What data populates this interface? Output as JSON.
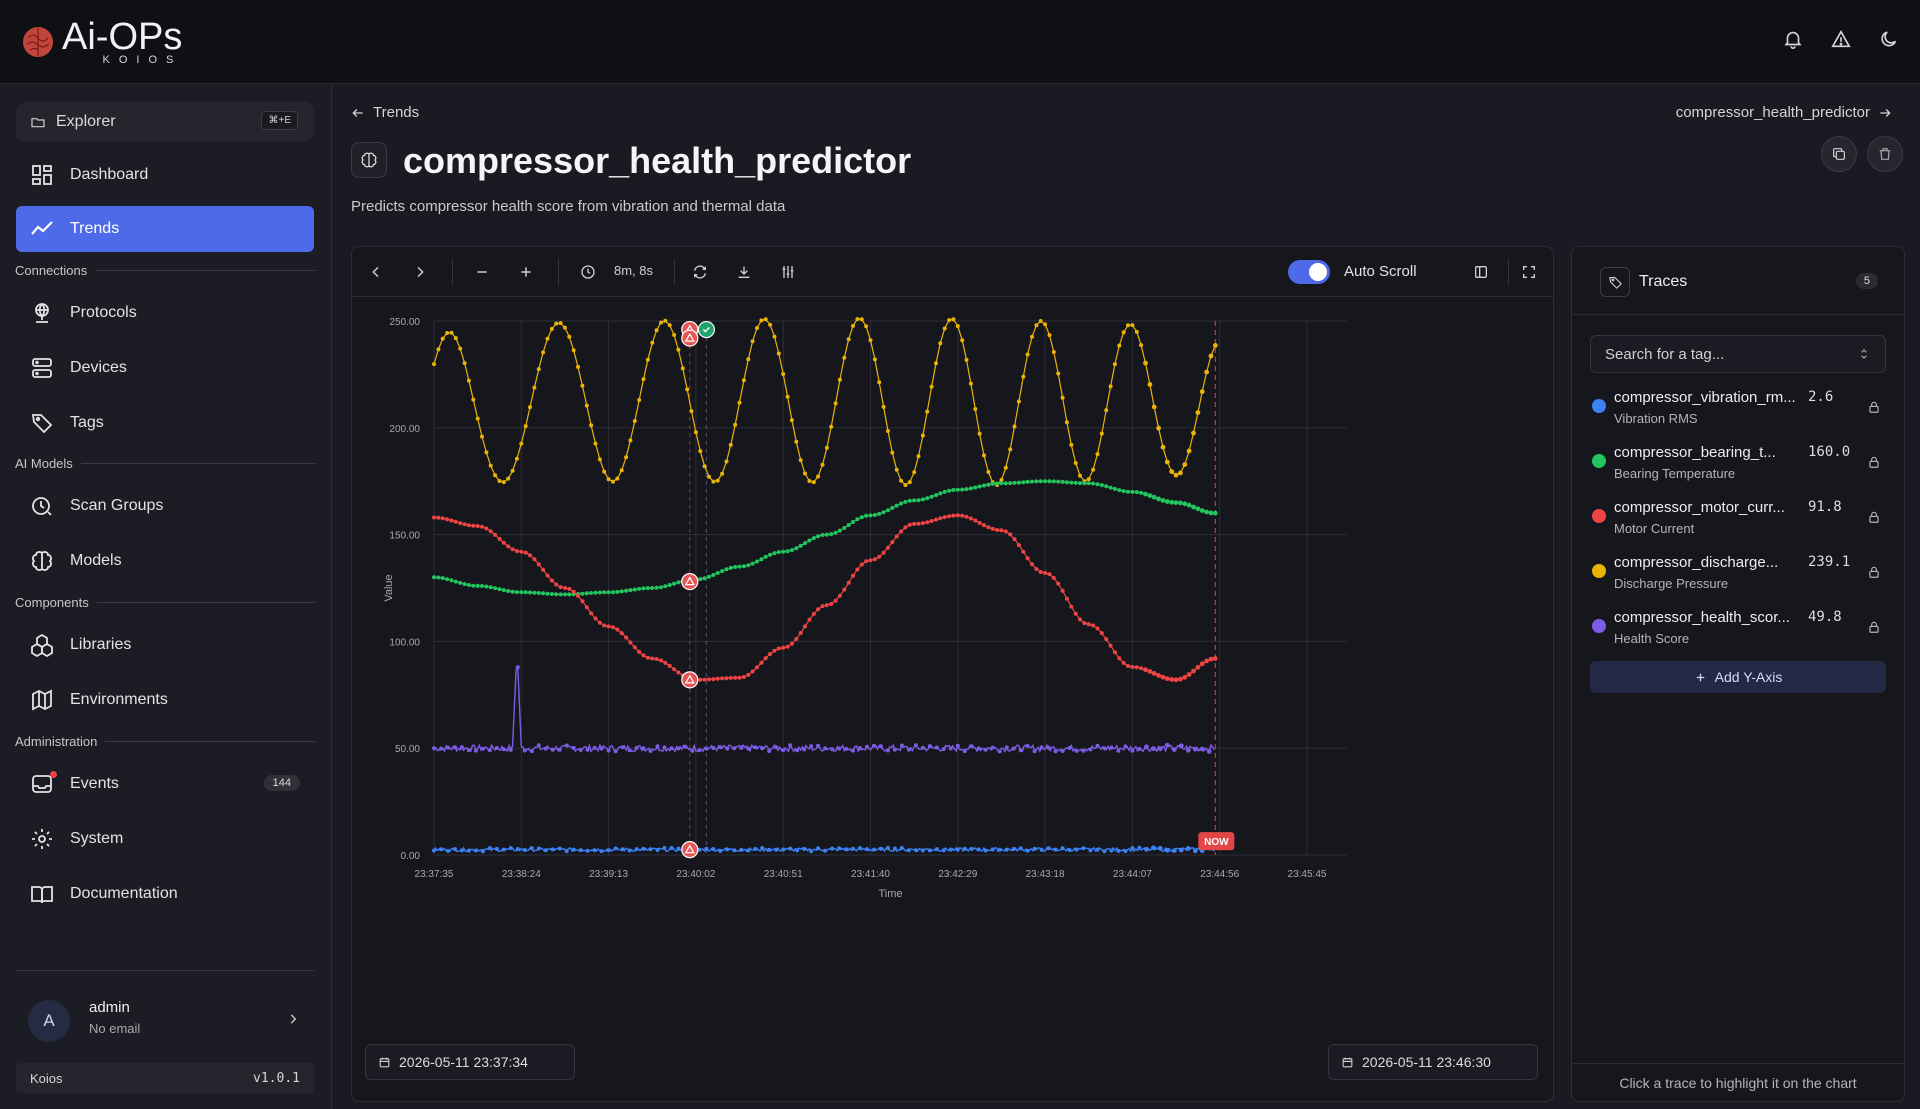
{
  "app": {
    "logo_main": "Ai-OPs",
    "logo_sub": "KOIOS"
  },
  "sidebar": {
    "explorer_label": "Explorer",
    "explorer_shortcut": "⌘+E",
    "items": [
      {
        "label": "Dashboard"
      },
      {
        "label": "Trends"
      },
      {
        "label": "Protocols"
      },
      {
        "label": "Devices"
      },
      {
        "label": "Tags"
      },
      {
        "label": "Scan Groups"
      },
      {
        "label": "Models"
      },
      {
        "label": "Libraries"
      },
      {
        "label": "Environments"
      },
      {
        "label": "Events",
        "badge": "144"
      },
      {
        "label": "System"
      },
      {
        "label": "Documentation"
      }
    ],
    "sections": [
      "Connections",
      "AI Models",
      "Components",
      "Administration"
    ],
    "user": {
      "initial": "A",
      "name": "admin",
      "email": "No email"
    },
    "org": "Koios",
    "version": "v1.0.1"
  },
  "page": {
    "breadcrumb": "Trends",
    "breadcrumb_right": "compressor_health_predictor",
    "title": "compressor_health_predictor",
    "description": "Predicts compressor health score from vibration and thermal data"
  },
  "toolbar": {
    "time_range": "8m, 8s",
    "auto_scroll_label": "Auto Scroll",
    "auto_scroll_on": true
  },
  "dates": {
    "start": "2026-05-11 23:37:34",
    "end": "2026-05-11 23:46:30"
  },
  "traces": {
    "title": "Traces",
    "count": "5",
    "search_placeholder": "Search for a tag...",
    "items": [
      {
        "name": "compressor_vibration_rm...",
        "label": "Vibration RMS",
        "value": "2.6",
        "color": "#3b82f6"
      },
      {
        "name": "compressor_bearing_t...",
        "label": "Bearing Temperature",
        "value": "160.0",
        "color": "#22c55e"
      },
      {
        "name": "compressor_motor_curr...",
        "label": "Motor Current",
        "value": "91.8",
        "color": "#ef4444"
      },
      {
        "name": "compressor_discharge...",
        "label": "Discharge Pressure",
        "value": "239.1",
        "color": "#eab308"
      },
      {
        "name": "compressor_health_scor...",
        "label": "Health Score",
        "value": "49.8",
        "color": "#7c5ce6"
      }
    ],
    "add_label": "Add Y-Axis",
    "footer": "Click a trace to highlight it on the chart"
  },
  "chart_data": {
    "type": "line",
    "xlabel": "Time",
    "ylabel": "Value",
    "ylim": [
      0,
      250
    ],
    "yticks": [
      "0.00",
      "50.00",
      "100.00",
      "150.00",
      "200.00",
      "250.00"
    ],
    "xticks": [
      "23:37:35",
      "23:38:24",
      "23:39:13",
      "23:40:02",
      "23:40:51",
      "23:41:40",
      "23:42:29",
      "23:43:18",
      "23:44:07",
      "23:44:56",
      "23:45:45"
    ],
    "now_label": "NOW",
    "grid": true,
    "series": [
      {
        "color": "#eab308",
        "x": [
          0,
          0.05,
          0.1,
          0.15,
          0.2,
          0.25,
          0.3,
          0.35,
          0.4,
          0.45,
          0.5,
          0.55,
          0.6,
          0.65,
          0.7,
          0.75,
          0.8,
          0.85,
          0.9,
          0.95,
          1.0,
          1.05,
          1.1,
          1.15,
          1.2,
          1.25,
          1.3,
          1.35,
          1.4,
          1.45,
          1.5,
          1.55,
          1.6,
          1.65,
          1.7,
          1.75,
          1.8,
          1.85,
          1.9,
          1.95,
          2.0,
          2.05,
          2.1,
          2.15,
          2.2,
          2.25,
          2.3,
          2.35,
          2.4,
          2.45,
          2.5,
          2.55,
          2.6,
          2.65,
          2.7,
          2.75,
          2.8,
          2.85,
          2.9,
          2.95,
          3.0,
          3.05,
          3.1,
          3.15,
          3.2,
          3.25,
          3.3,
          3.35,
          3.4,
          3.45,
          3.5,
          3.55,
          3.6,
          3.65,
          3.7,
          3.75,
          3.8,
          3.85,
          3.9,
          3.95,
          4.0,
          4.05,
          4.1,
          4.15,
          4.2,
          4.25,
          4.3,
          4.35,
          4.4,
          4.45,
          4.5,
          4.55,
          4.6,
          4.65,
          4.7,
          4.75,
          4.8,
          4.85,
          4.9,
          4.95,
          5.0,
          5.05,
          5.1,
          5.15,
          5.2,
          5.25,
          5.3,
          5.35,
          5.4,
          5.45,
          5.5,
          5.55,
          5.6,
          5.65,
          5.7,
          5.75,
          5.8,
          5.85,
          5.9,
          5.95,
          6.0,
          6.05,
          6.1,
          6.15,
          6.2,
          6.25,
          6.3,
          6.35,
          6.4,
          6.45,
          6.5,
          6.55,
          6.6,
          6.65,
          6.7,
          6.75,
          6.8,
          6.85,
          6.9,
          6.95,
          7.0,
          7.05,
          7.1,
          7.15,
          7.2,
          7.25,
          7.3,
          7.35,
          7.4,
          7.45,
          7.5,
          7.55,
          7.6,
          7.65,
          7.7,
          7.75,
          7.8,
          7.85,
          7.9,
          7.95,
          8.0,
          8.05,
          8.1,
          8.15,
          8.2,
          8.25,
          8.3,
          8.35,
          8.4,
          8.45,
          8.5,
          8.55,
          8.6,
          8.65,
          8.7,
          8.75,
          8.8,
          8.85,
          8.9,
          8.95
        ],
        "y": [
          229.8,
          236.7,
          241.7,
          244.4,
          244.5,
          242.0,
          237.1,
          230.3,
          222.1,
          213.2,
          204.3,
          195.9,
          188.5,
          182.3,
          177.8,
          175.1,
          174.6,
          176.2,
          179.9,
          185.5,
          192.6,
          200.8,
          209.7,
          218.8,
          227.5,
          235.3,
          241.7,
          246.3,
          248.8,
          249.0,
          246.9,
          242.6,
          236.3,
          228.5,
          219.7,
          210.4,
          201.2,
          192.6,
          185.2,
          179.5,
          175.9,
          174.8,
          176.2,
          180.1,
          186.2,
          194.1,
          203.2,
          213.0,
          222.8,
          231.9,
          239.8,
          245.7,
          249.3,
          250.1,
          248.1,
          243.5,
          236.5,
          227.8,
          218.0,
          207.8,
          197.9,
          189.1,
          182.0,
          177.1,
          174.8,
          175.3,
          178.5,
          184.2,
          192.0,
          201.4,
          211.8,
          222.3,
          232.1,
          240.5,
          246.7,
          250.3,
          250.8,
          248.2,
          242.7,
          234.8,
          225.2,
          214.5,
          203.6,
          193.5,
          184.9,
          178.6,
          175.1,
          174.6,
          177.2,
          182.7,
          190.7,
          200.5,
          211.4,
          222.5,
          232.8,
          241.5,
          247.7,
          250.9,
          250.8,
          247.5,
          241.0,
          232.0,
          221.3,
          209.8,
          198.5,
          188.4,
          180.4,
          175.2,
          173.2,
          174.6,
          179.2,
          186.7,
          196.4,
          207.6,
          219.2,
          230.2,
          239.6,
          246.5,
          250.4,
          250.8,
          247.6,
          241.0,
          231.8,
          220.7,
          208.8,
          197.2,
          187.1,
          179.3,
          174.5,
          173.2,
          175.6,
          181.3,
          189.9,
          200.6,
          212.3,
          223.9,
          234.3,
          242.6,
          248.0,
          250.0,
          248.4,
          243.4,
          235.5,
          225.4,
          214.1,
          202.6,
          192.0,
          183.5,
          177.6,
          175.0,
          176.0,
          180.4,
          187.7,
          197.3,
          208.2,
          219.4,
          229.8,
          238.5,
          244.7,
          248.0,
          248.1,
          244.9,
          238.7,
          230.3,
          220.3,
          209.8,
          199.8,
          190.9,
          184.0,
          179.5,
          177.8,
          178.9,
          182.8,
          189.2,
          197.5,
          207.1,
          216.9,
          226.1,
          233.6,
          238.6
        ]
      },
      {
        "color": "#22c55e",
        "x": [
          0,
          0.5,
          1,
          1.5,
          2,
          2.5,
          3,
          3.5,
          4,
          4.5,
          5,
          5.5,
          6,
          6.5,
          7,
          7.5,
          8,
          8.5,
          8.95
        ],
        "y": [
          130,
          126,
          123,
          122,
          123,
          125,
          129,
          135,
          142,
          150,
          159,
          166,
          171,
          174,
          175,
          174,
          170,
          165,
          160
        ]
      },
      {
        "color": "#ef4444",
        "x": [
          0,
          0.5,
          1,
          1.5,
          2,
          2.5,
          3,
          3.5,
          4,
          4.5,
          5,
          5.5,
          6,
          6.5,
          7,
          7.5,
          8,
          8.5,
          8.95
        ],
        "y": [
          158,
          154,
          142,
          125,
          107,
          92,
          82,
          83,
          97,
          117,
          138,
          155,
          159,
          152,
          132,
          108,
          88,
          82,
          92
        ]
      },
      {
        "color": "#7c5ce6",
        "x": [
          0,
          0.9,
          0.95,
          1.0,
          8.95
        ],
        "y": [
          50,
          50,
          97,
          50,
          50
        ],
        "noise": 1.5
      },
      {
        "color": "#3b82f6",
        "x": [
          0,
          8.95
        ],
        "y": [
          2.5,
          2.6
        ],
        "noise": 0.8
      }
    ]
  }
}
